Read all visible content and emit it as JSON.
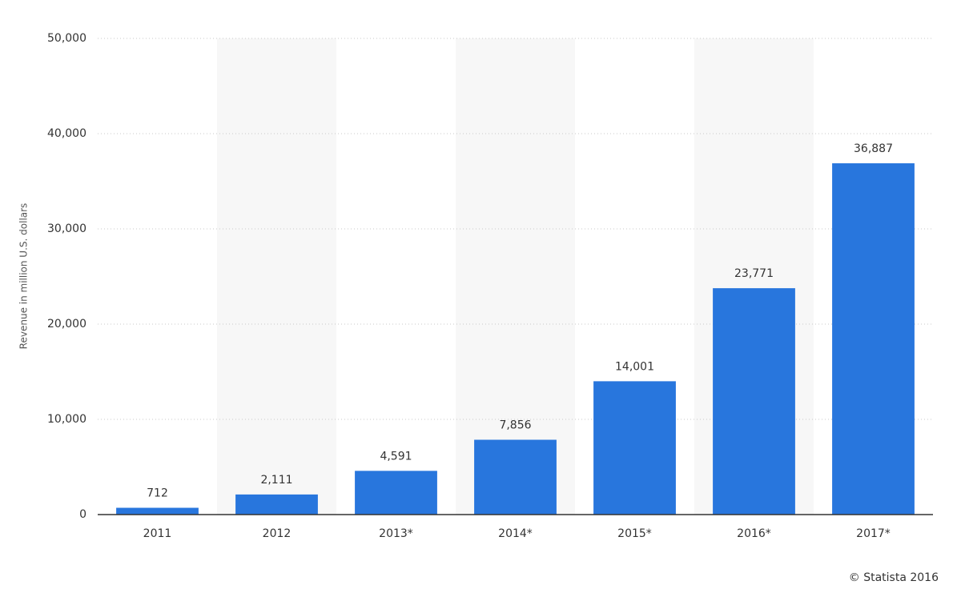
{
  "chart_data": {
    "type": "bar",
    "y_axis_label": "Revenue in million U.S. dollars",
    "categories": [
      "2011",
      "2012",
      "2013*",
      "2014*",
      "2015*",
      "2016*",
      "2017*"
    ],
    "values": [
      712,
      2111,
      4591,
      7856,
      14001,
      23771,
      36887
    ],
    "value_labels": [
      "712",
      "2,111",
      "4,591",
      "7,856",
      "14,001",
      "23,771",
      "36,887"
    ],
    "color": "#2876dd",
    "ylim": [
      0,
      50000
    ],
    "yticks": [
      0,
      {
        "value": 10000,
        "label": "10,000"
      },
      {
        "value": 20000,
        "label": "20,000"
      },
      {
        "value": 30000,
        "label": "30,000"
      },
      {
        "value": 40000,
        "label": "40,000"
      },
      {
        "value": 50000,
        "label": "50,000"
      }
    ],
    "grid": true,
    "credit": "© Statista 2016"
  }
}
